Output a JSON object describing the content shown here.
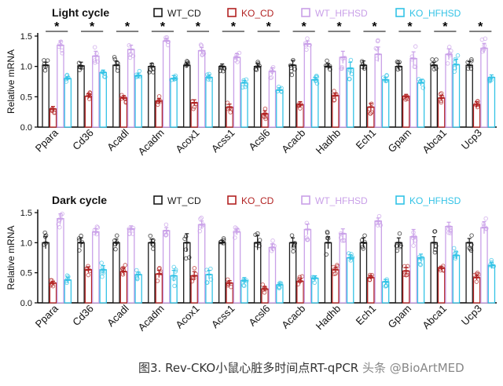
{
  "colors": {
    "WT_CD": "#1a1a1a",
    "KO_CD": "#b22222",
    "WT_HFHSD": "#c9a0e8",
    "KO_HFHSD": "#33c3e6",
    "text": "#111111"
  },
  "legend": [
    "WT_CD",
    "KO_CD",
    "WT_HFHSD",
    "KO_HFHSD"
  ],
  "caption": "图3. Rev-CKO小鼠心脏多时间点RT-qPCR",
  "watermark": "头条 @BioArtMED",
  "chart_data": [
    {
      "type": "bar",
      "title": "Light cycle",
      "ylabel": "Relative mRNA",
      "ylim": [
        0,
        1.5
      ],
      "yticks": [
        "0.0",
        "0.5",
        "1.0",
        "1.5"
      ],
      "categories": [
        "Ppara",
        "Cd36",
        "Acadl",
        "Acadm",
        "Acox1",
        "Acss1",
        "Acsl6",
        "Acacb",
        "Hadhb",
        "Ech1",
        "Gpam",
        "Abca1",
        "Ucp3"
      ],
      "significance": [
        "*",
        "*",
        "*",
        "*",
        "*",
        "*",
        "*",
        "*",
        "*",
        "*",
        "*",
        "*",
        "*"
      ],
      "series": [
        {
          "name": "WT_CD",
          "values": [
            1.02,
            1.01,
            1.02,
            1.0,
            1.02,
            1.0,
            1.0,
            1.02,
            1.0,
            1.02,
            1.0,
            1.02,
            1.02
          ],
          "errors": [
            0.05,
            0.06,
            0.07,
            0.05,
            0.04,
            0.04,
            0.05,
            0.08,
            0.05,
            0.07,
            0.05,
            0.05,
            0.06
          ]
        },
        {
          "name": "KO_CD",
          "values": [
            0.3,
            0.51,
            0.48,
            0.43,
            0.4,
            0.33,
            0.22,
            0.37,
            0.52,
            0.33,
            0.51,
            0.48,
            0.37
          ],
          "errors": [
            0.04,
            0.04,
            0.04,
            0.04,
            0.05,
            0.05,
            0.05,
            0.05,
            0.04,
            0.06,
            0.03,
            0.04,
            0.05
          ]
        },
        {
          "name": "WT_HFHSD",
          "values": [
            1.35,
            1.17,
            1.28,
            1.42,
            1.26,
            1.15,
            0.92,
            1.37,
            1.15,
            1.2,
            1.13,
            1.2,
            1.3
          ],
          "errors": [
            0.07,
            0.08,
            0.07,
            0.04,
            0.05,
            0.06,
            0.06,
            0.05,
            0.1,
            0.12,
            0.11,
            0.09,
            0.08
          ]
        },
        {
          "name": "KO_HFHSD",
          "values": [
            0.8,
            0.9,
            0.85,
            0.8,
            0.82,
            0.73,
            0.61,
            0.78,
            0.97,
            0.78,
            0.73,
            1.03,
            0.82
          ],
          "errors": [
            0.03,
            0.04,
            0.04,
            0.05,
            0.04,
            0.04,
            0.04,
            0.04,
            0.1,
            0.04,
            0.05,
            0.09,
            0.04
          ]
        }
      ]
    },
    {
      "type": "bar",
      "title": "Dark cycle",
      "ylabel": "Relative mRNA",
      "ylim": [
        0,
        1.5
      ],
      "yticks": [
        "0.0",
        "0.5",
        "1.0",
        "1.5"
      ],
      "categories": [
        "Ppara",
        "Cd36",
        "Acadl",
        "Acadm",
        "Acox1",
        "Acss1",
        "Acsl6",
        "Acacb",
        "Hadhb",
        "Ech1",
        "Gpam",
        "Abca1",
        "Ucp3"
      ],
      "significance": [
        "",
        "",
        "",
        "",
        "",
        "",
        "",
        "",
        "",
        "",
        "",
        "",
        ""
      ],
      "series": [
        {
          "name": "WT_CD",
          "values": [
            1.0,
            1.0,
            1.0,
            1.0,
            1.0,
            1.0,
            1.0,
            1.0,
            1.0,
            1.0,
            1.0,
            1.0,
            1.0
          ],
          "errors": [
            0.1,
            0.08,
            0.06,
            0.06,
            0.15,
            0.04,
            0.12,
            0.08,
            0.1,
            0.08,
            0.08,
            0.1,
            0.07
          ]
        },
        {
          "name": "KO_CD",
          "values": [
            0.33,
            0.55,
            0.52,
            0.48,
            0.45,
            0.33,
            0.23,
            0.36,
            0.55,
            0.42,
            0.53,
            0.58,
            0.42
          ],
          "errors": [
            0.03,
            0.05,
            0.06,
            0.06,
            0.07,
            0.04,
            0.04,
            0.04,
            0.04,
            0.03,
            0.06,
            0.03,
            0.04
          ]
        },
        {
          "name": "WT_HFHSD",
          "values": [
            1.4,
            1.18,
            1.23,
            1.2,
            1.3,
            1.18,
            0.92,
            1.22,
            1.15,
            1.36,
            1.1,
            1.27,
            1.25
          ],
          "errors": [
            0.08,
            0.05,
            0.05,
            0.05,
            0.06,
            0.05,
            0.06,
            0.09,
            0.08,
            0.05,
            0.12,
            0.07,
            0.1
          ]
        },
        {
          "name": "KO_HFHSD",
          "values": [
            0.38,
            0.55,
            0.47,
            0.45,
            0.47,
            0.37,
            0.3,
            0.41,
            0.75,
            0.35,
            0.75,
            0.79,
            0.62
          ],
          "errors": [
            0.05,
            0.07,
            0.04,
            0.09,
            0.07,
            0.05,
            0.03,
            0.04,
            0.05,
            0.04,
            0.06,
            0.06,
            0.05
          ]
        }
      ]
    }
  ]
}
